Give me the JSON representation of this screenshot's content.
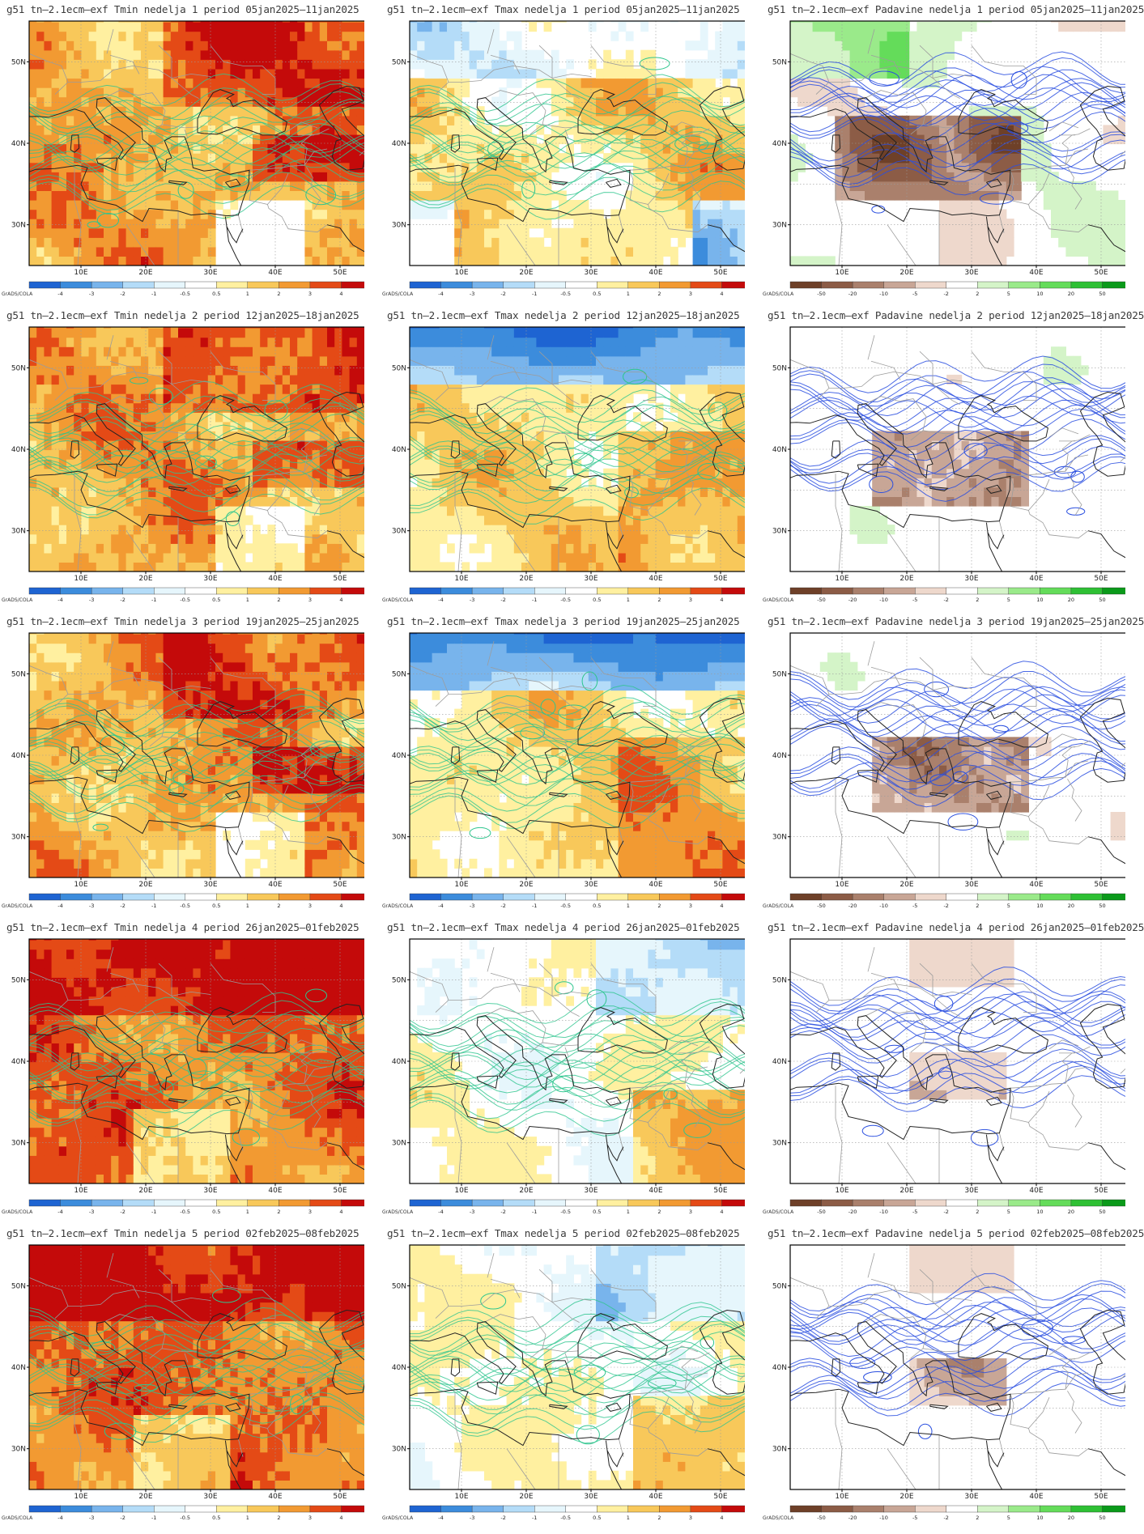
{
  "grid": {
    "lat_ticks": [
      "30N",
      "40N",
      "50N"
    ],
    "lon_ticks": [
      "10E",
      "20E",
      "30E",
      "40E",
      "50E"
    ],
    "credit": "GrADS/COLA"
  },
  "legends": {
    "temp": {
      "labels": [
        "-4",
        "-3",
        "-2",
        "-1",
        "-0.5",
        "0.5",
        "1",
        "2",
        "3",
        "4"
      ],
      "colors": [
        "#1e64d2",
        "#3c8cdc",
        "#78b4ec",
        "#b4dcf8",
        "#e6f6fc",
        "#ffffff",
        "#fff0a0",
        "#f8c85a",
        "#f29a32",
        "#e44a16",
        "#c40a0a"
      ]
    },
    "prec": {
      "labels": [
        "-50",
        "-20",
        "-10",
        "-5",
        "-2",
        "2",
        "5",
        "10",
        "20",
        "50"
      ],
      "colors": [
        "#6e4028",
        "#8c5c46",
        "#aa806c",
        "#c8a696",
        "#eed8cc",
        "#ffffff",
        "#d4f4c8",
        "#9aea8a",
        "#64dc5a",
        "#2ec034",
        "#0a9a1a"
      ]
    }
  },
  "rows": [
    {
      "week": "1",
      "period": "05jan2025–11jan2025",
      "titles": [
        "g51 tn–2.1ecm–exf Tmin nedelja 1 period 05jan2025–11jan2025",
        "g51 tn–2.1ecm–exf Tmax nedelja 1 period 05jan2025–11jan2025",
        "g51 tn–2.1ecm–exf Padavine nedelja 1 period 05jan2025–11jan2025"
      ]
    },
    {
      "week": "2",
      "period": "12jan2025–18jan2025",
      "titles": [
        "g51 tn–2.1ecm–exf Tmin nedelja 2 period 12jan2025–18jan2025",
        "g51 tn–2.1ecm–exf Tmax nedelja 2 period 12jan2025–18jan2025",
        "g51 tn–2.1ecm–exf Padavine nedelja 2 period 12jan2025–18jan2025"
      ]
    },
    {
      "week": "3",
      "period": "19jan2025–25jan2025",
      "titles": [
        "g51 tn–2.1ecm–exf Tmin nedelja 3 period 19jan2025–25jan2025",
        "g51 tn–2.1ecm–exf Tmax nedelja 3 period 19jan2025–25jan2025",
        "g51 tn–2.1ecm–exf Padavine nedelja 3 period 19jan2025–25jan2025"
      ]
    },
    {
      "week": "4",
      "period": "26jan2025–01feb2025",
      "titles": [
        "g51 tn–2.1ecm–exf Tmin nedelja 4 period 26jan2025–01feb2025",
        "g51 tn–2.1ecm–exf Tmax nedelja 4 period 26jan2025–01feb2025",
        "g51 tn–2.1ecm–exf Padavine nedelja 4 period 26jan2025–01feb2025"
      ]
    },
    {
      "week": "5",
      "period": "02feb2025–08feb2025",
      "titles": [
        "g51 tn–2.1ecm–exf Tmin nedelja 5 period 02feb2025–08feb2025",
        "g51 tn–2.1ecm–exf Tmax nedelja 5 period 02feb2025–08feb2025",
        "g51 tn–2.1ecm–exf Padavine nedelja 5 period 02feb2025–08feb2025"
      ]
    }
  ],
  "fields": [
    [
      "tmin-warm",
      "tmax-mixed",
      "prec-wet-north"
    ],
    [
      "tmin-warm",
      "tmax-cold-north",
      "prec-dry-east"
    ],
    [
      "tmin-warm",
      "tmax-cold-north",
      "prec-dry-east"
    ],
    [
      "tmin-hot",
      "tmax-near-normal",
      "prec-dry-central"
    ],
    [
      "tmin-hot",
      "tmax-near-normal",
      "prec-dry-central"
    ]
  ]
}
